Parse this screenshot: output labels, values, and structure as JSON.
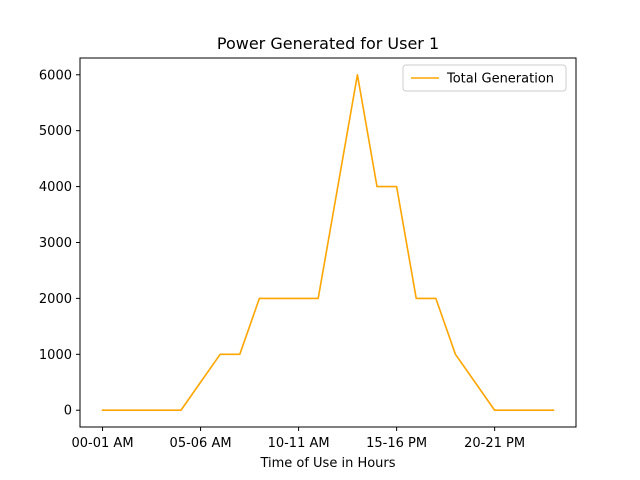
{
  "chart_data": {
    "type": "line",
    "title": "Power Generated for User 1",
    "xlabel": "Time of Use in Hours",
    "ylabel": "",
    "x_tick_labels": [
      "00-01 AM",
      "05-06 AM",
      "10-11 AM",
      "15-16 PM",
      "20-21 PM"
    ],
    "x_tick_positions": [
      0,
      5,
      10,
      15,
      20
    ],
    "xlim": [
      -1.15,
      24.15
    ],
    "ylim": [
      -300,
      6300
    ],
    "y_ticks": [
      0,
      1000,
      2000,
      3000,
      4000,
      5000,
      6000
    ],
    "legend_position": "top-right",
    "grid": false,
    "series": [
      {
        "name": "Total Generation",
        "color": "#ffa500",
        "x": [
          0,
          1,
          2,
          3,
          4,
          5,
          6,
          7,
          8,
          9,
          10,
          11,
          12,
          13,
          14,
          15,
          16,
          17,
          18,
          19,
          20,
          21,
          22,
          23
        ],
        "y": [
          0,
          0,
          0,
          0,
          0,
          500,
          1000,
          1000,
          2000,
          2000,
          2000,
          2000,
          4000,
          6000,
          4000,
          4000,
          2000,
          2000,
          1000,
          500,
          0,
          0,
          0,
          0
        ]
      }
    ]
  }
}
